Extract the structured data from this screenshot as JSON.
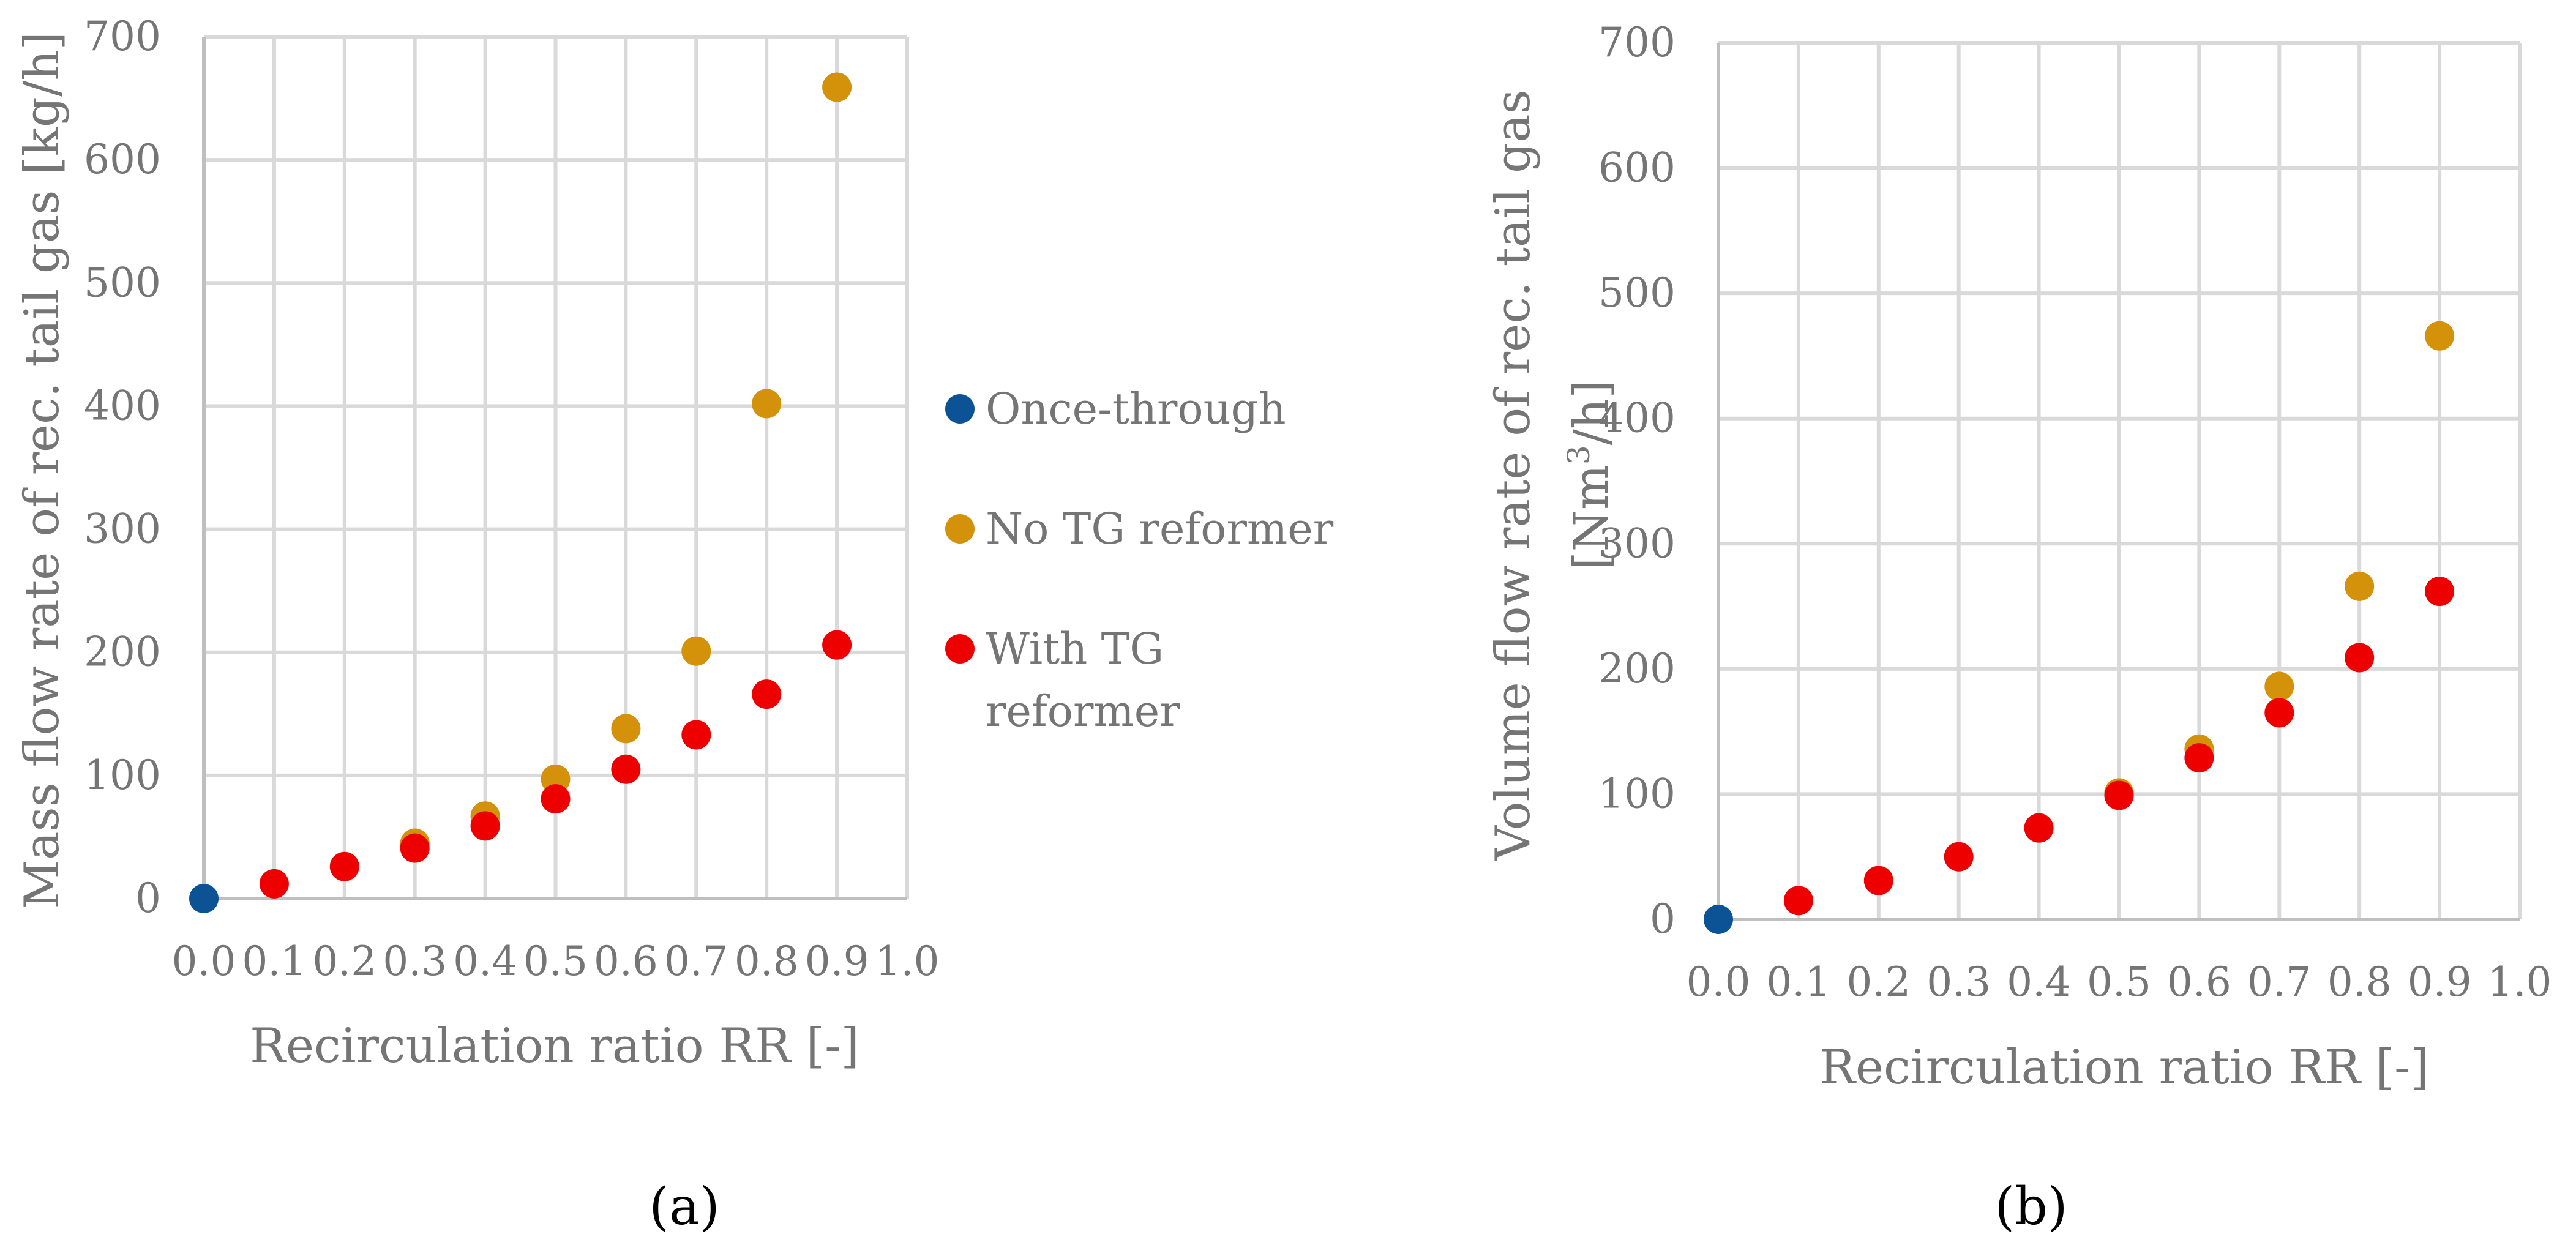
{
  "figure": {
    "legend": [
      {
        "name": "Once-through",
        "color": "#0b5394"
      },
      {
        "name": "No TG reformer",
        "color": "#d4920a"
      },
      {
        "name": "With TG",
        "name_line2": "reformer",
        "color": "#ee0000"
      }
    ]
  },
  "chart_data": [
    {
      "type": "scatter",
      "panel_label": "(a)",
      "xlabel": "Recirculation ratio RR [-]",
      "ylabel": "Mass flow rate of rec. tail gas [kg/h]",
      "xlim": [
        0,
        1.0
      ],
      "ylim": [
        0,
        700
      ],
      "xticks": [
        "0.0",
        "0.1",
        "0.2",
        "0.3",
        "0.4",
        "0.5",
        "0.6",
        "0.7",
        "0.8",
        "0.9",
        "1.0"
      ],
      "yticks": [
        "0",
        "100",
        "200",
        "300",
        "400",
        "500",
        "600",
        "700"
      ],
      "grid": true,
      "series": [
        {
          "name": "Once-through",
          "color": "#0b5394",
          "x": [
            0.0
          ],
          "y": [
            0
          ]
        },
        {
          "name": "No TG reformer",
          "color": "#d4920a",
          "x": [
            0.3,
            0.4,
            0.5,
            0.6,
            0.7,
            0.8,
            0.9
          ],
          "y": [
            45,
            67,
            97,
            138,
            201,
            402,
            659
          ]
        },
        {
          "name": "With TG reformer",
          "color": "#ee0000",
          "x": [
            0.1,
            0.2,
            0.3,
            0.4,
            0.5,
            0.6,
            0.7,
            0.8,
            0.9
          ],
          "y": [
            12,
            26,
            41,
            59,
            81,
            105,
            133,
            166,
            206
          ]
        }
      ]
    },
    {
      "type": "scatter",
      "panel_label": "(b)",
      "xlabel": "Recirculation ratio RR [-]",
      "ylabel_line1": "Volume flow rate of rec. tail gas",
      "ylabel_line2_pre": "[Nm",
      "ylabel_line2_sup": "3",
      "ylabel_line2_post": "/h]",
      "xlim": [
        0,
        1.0
      ],
      "ylim": [
        0,
        700
      ],
      "xticks": [
        "0.0",
        "0.1",
        "0.2",
        "0.3",
        "0.4",
        "0.5",
        "0.6",
        "0.7",
        "0.8",
        "0.9",
        "1.0"
      ],
      "yticks": [
        "0",
        "100",
        "200",
        "300",
        "400",
        "500",
        "600",
        "700"
      ],
      "grid": true,
      "series": [
        {
          "name": "Once-through",
          "color": "#0b5394",
          "x": [
            0.0
          ],
          "y": [
            0
          ]
        },
        {
          "name": "No TG reformer",
          "color": "#d4920a",
          "x": [
            0.5,
            0.6,
            0.7,
            0.8,
            0.9
          ],
          "y": [
            101,
            136,
            186,
            266,
            466
          ]
        },
        {
          "name": "With TG reformer",
          "color": "#ee0000",
          "x": [
            0.1,
            0.2,
            0.3,
            0.4,
            0.5,
            0.6,
            0.7,
            0.8,
            0.9
          ],
          "y": [
            15,
            31,
            50,
            73,
            99,
            129,
            165,
            209,
            262
          ]
        }
      ]
    }
  ]
}
